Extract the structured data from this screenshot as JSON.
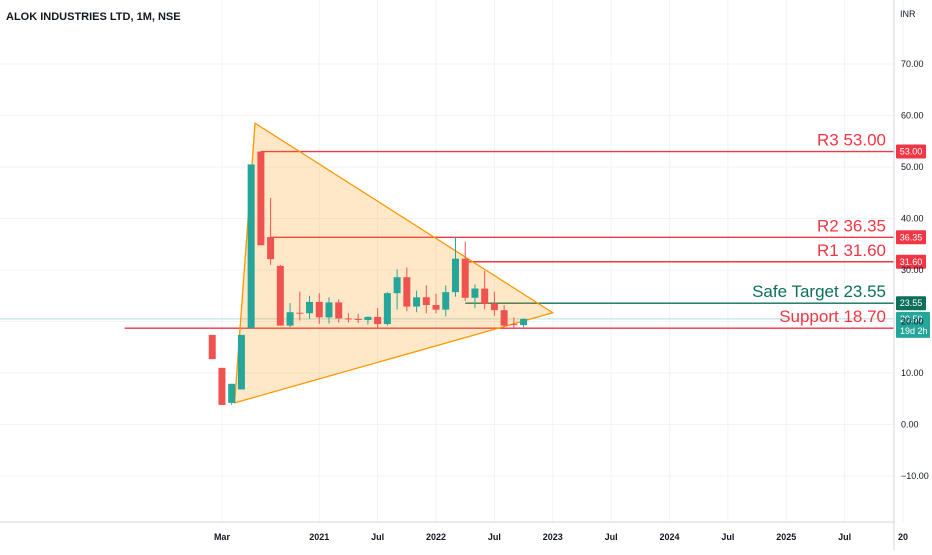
{
  "header": {
    "title": "ALOK INDUSTRIES LTD, 1M, NSE",
    "currency": "INR"
  },
  "chart_data": {
    "type": "candlestick",
    "title": "ALOK INDUSTRIES LTD, 1M, NSE",
    "ylabel": "INR",
    "ylim": [
      -18,
      82
    ],
    "y_ticks": [
      70,
      60,
      50,
      40,
      30,
      20,
      10,
      0,
      -10
    ],
    "y_tick_labels": [
      "70.00",
      "60.00",
      "50.00",
      "40.00",
      "30.00",
      "20.00",
      "10.00",
      "0.00",
      "−10.00"
    ],
    "x_ticks": [
      {
        "label": "Mar",
        "month": 2
      },
      {
        "label": "2021",
        "month": 12
      },
      {
        "label": "Jul",
        "month": 18
      },
      {
        "label": "2022",
        "month": 24
      },
      {
        "label": "Jul",
        "month": 30
      },
      {
        "label": "2023",
        "month": 36
      },
      {
        "label": "Jul",
        "month": 42
      },
      {
        "label": "2024",
        "month": 48
      },
      {
        "label": "Jul",
        "month": 54
      },
      {
        "label": "2025",
        "month": 60
      },
      {
        "label": "Jul",
        "month": 66
      },
      {
        "label": "20",
        "month": 72
      }
    ],
    "x_axis_note": "month index counts months from Jan 2020 (0 = Jan 2020)",
    "candles": [
      {
        "month": 1,
        "open": 17.4,
        "high": 17.4,
        "low": 12.7,
        "close": 12.7
      },
      {
        "month": 2,
        "open": 11.0,
        "high": 11.0,
        "low": 3.8,
        "close": 3.8
      },
      {
        "month": 3,
        "open": 4.2,
        "high": 7.9,
        "low": 3.8,
        "close": 7.9
      },
      {
        "month": 4,
        "open": 6.8,
        "high": 17.4,
        "low": 6.8,
        "close": 17.4
      },
      {
        "month": 5,
        "open": 18.7,
        "high": 50.5,
        "low": 18.7,
        "close": 50.5
      },
      {
        "month": 6,
        "open": 53.0,
        "high": 53.0,
        "low": 34.8,
        "close": 34.8
      },
      {
        "month": 7,
        "open": 36.4,
        "high": 44.0,
        "low": 31.0,
        "close": 32.1
      },
      {
        "month": 8,
        "open": 30.8,
        "high": 31.0,
        "low": 19.2,
        "close": 19.2
      },
      {
        "month": 9,
        "open": 19.2,
        "high": 23.6,
        "low": 18.9,
        "close": 21.8
      },
      {
        "month": 10,
        "open": 21.7,
        "high": 25.8,
        "low": 20.2,
        "close": 21.6
      },
      {
        "month": 11,
        "open": 21.6,
        "high": 25.0,
        "low": 20.5,
        "close": 23.8
      },
      {
        "month": 12,
        "open": 23.8,
        "high": 25.5,
        "low": 19.5,
        "close": 20.8
      },
      {
        "month": 13,
        "open": 20.8,
        "high": 24.7,
        "low": 19.6,
        "close": 23.7
      },
      {
        "month": 14,
        "open": 23.7,
        "high": 24.3,
        "low": 19.8,
        "close": 20.6
      },
      {
        "month": 15,
        "open": 20.6,
        "high": 21.6,
        "low": 19.8,
        "close": 20.5
      },
      {
        "month": 16,
        "open": 20.5,
        "high": 21.5,
        "low": 19.7,
        "close": 20.3
      },
      {
        "month": 17,
        "open": 20.3,
        "high": 21.0,
        "low": 19.4,
        "close": 20.9
      },
      {
        "month": 18,
        "open": 20.9,
        "high": 22.6,
        "low": 18.8,
        "close": 19.5
      },
      {
        "month": 19,
        "open": 19.5,
        "high": 25.7,
        "low": 19.2,
        "close": 25.5
      },
      {
        "month": 20,
        "open": 25.5,
        "high": 30.1,
        "low": 22.3,
        "close": 28.6
      },
      {
        "month": 21,
        "open": 28.6,
        "high": 30.5,
        "low": 22.0,
        "close": 22.9
      },
      {
        "month": 22,
        "open": 22.9,
        "high": 26.0,
        "low": 21.8,
        "close": 24.7
      },
      {
        "month": 23,
        "open": 24.7,
        "high": 27.0,
        "low": 21.6,
        "close": 23.2
      },
      {
        "month": 24,
        "open": 23.2,
        "high": 25.4,
        "low": 21.6,
        "close": 22.3
      },
      {
        "month": 25,
        "open": 22.3,
        "high": 27.0,
        "low": 21.0,
        "close": 25.7
      },
      {
        "month": 26,
        "open": 25.7,
        "high": 36.5,
        "low": 24.8,
        "close": 32.2
      },
      {
        "month": 27,
        "open": 32.2,
        "high": 35.5,
        "low": 24.0,
        "close": 24.6
      },
      {
        "month": 28,
        "open": 24.6,
        "high": 27.2,
        "low": 22.6,
        "close": 26.4
      },
      {
        "month": 29,
        "open": 26.4,
        "high": 29.8,
        "low": 22.4,
        "close": 23.4
      },
      {
        "month": 30,
        "open": 23.4,
        "high": 25.8,
        "low": 21.1,
        "close": 22.2
      },
      {
        "month": 31,
        "open": 22.2,
        "high": 23.2,
        "low": 19.0,
        "close": 19.2
      },
      {
        "month": 32,
        "open": 19.5,
        "high": 20.8,
        "low": 18.6,
        "close": 19.3
      },
      {
        "month": 33,
        "open": 19.3,
        "high": 20.6,
        "low": 18.9,
        "close": 20.5
      }
    ],
    "levels": [
      {
        "name": "R3",
        "label": "R3 53.00",
        "value": 53.0,
        "tag": "53.00",
        "color": "#f23645",
        "start_month": 6
      },
      {
        "name": "R2",
        "label": "R2 36.35",
        "value": 36.35,
        "tag": "36.35",
        "color": "#f23645",
        "start_month": 7
      },
      {
        "name": "R1",
        "label": "R1 31.60",
        "value": 31.6,
        "tag": "31.60",
        "color": "#f23645",
        "start_month": 27
      },
      {
        "name": "Safe Target",
        "label": "Safe Target 23.55",
        "value": 23.55,
        "tag": "23.55",
        "color": "#0b6f5a",
        "start_month": 27
      },
      {
        "name": "Support",
        "label": "Support 18.70",
        "value": 18.7,
        "tag": "18.70",
        "color": "#f23645",
        "start_month": -8
      }
    ],
    "last_price": {
      "value": 20.5,
      "tag": "20.50",
      "countdown": "19d 2h",
      "color": "#26a69a"
    },
    "triangle": {
      "points": [
        {
          "month": 3.3,
          "price": 4.2
        },
        {
          "month": 5.4,
          "price": 58.5
        },
        {
          "month": 36.0,
          "price": 21.7
        }
      ],
      "fill": "rgba(255,152,0,0.22)",
      "stroke": "#ff9800"
    },
    "colors": {
      "up": "#26a69a",
      "down": "#ef5350",
      "grid": "#f0f3fa",
      "axis_text": "#131722"
    },
    "grid": true,
    "legend": "none"
  }
}
